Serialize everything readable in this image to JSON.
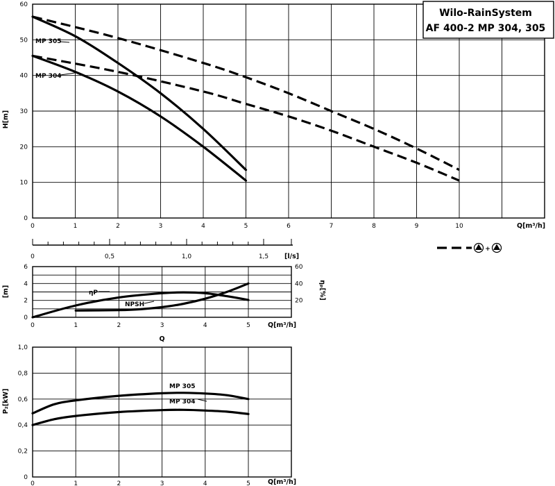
{
  "title": {
    "line1": "Wilo-RainSystem",
    "line2": "AF 400-2   MP 304, 305"
  },
  "legend": {
    "pump_symbol": "▲",
    "plus": "+"
  },
  "chart_data": [
    {
      "type": "line",
      "id": "head",
      "xlabel": "Q[m³/h]",
      "ylabel": "H[m]",
      "xlim": [
        0,
        12
      ],
      "ylim": [
        0,
        60
      ],
      "x_ticks": [
        0,
        1,
        2,
        3,
        4,
        5,
        6,
        7,
        8,
        9,
        10
      ],
      "y_ticks": [
        0,
        10,
        20,
        30,
        40,
        50,
        60
      ],
      "grid": true,
      "series": [
        {
          "name": "MP 305",
          "style": "solid",
          "x": [
            0,
            1,
            2,
            3,
            4,
            5
          ],
          "y": [
            56.5,
            51,
            43.5,
            35,
            25,
            13.5
          ]
        },
        {
          "name": "MP 304",
          "style": "solid",
          "x": [
            0,
            1,
            2,
            3,
            4,
            5
          ],
          "y": [
            45.5,
            41,
            35.5,
            28.5,
            20,
            10.5
          ]
        },
        {
          "style": "dashed",
          "x": [
            0,
            2,
            4,
            5,
            6,
            7,
            8,
            9,
            10
          ],
          "y": [
            56.5,
            50.5,
            43.5,
            39.5,
            35,
            30,
            25,
            19.5,
            13.5
          ]
        },
        {
          "style": "dashed",
          "x": [
            0,
            2,
            4,
            5,
            6,
            7,
            8,
            9,
            10
          ],
          "y": [
            45.5,
            41,
            35.5,
            32,
            28.5,
            24.5,
            20,
            15.5,
            10.5
          ]
        }
      ]
    },
    {
      "type": "line",
      "id": "secondary_axis",
      "xlabel": "[l/s]",
      "xlim": [
        0,
        1.5
      ],
      "x_ticks": [
        "0",
        "0,5",
        "1,0",
        "1,5"
      ]
    },
    {
      "type": "line",
      "id": "npsh_efficiency",
      "xlabel": "Q[m³/h]",
      "bottom_label": "Q",
      "ylabel": "[m]",
      "ylabel_right": "ηₚ[%]",
      "xlim": [
        0,
        5
      ],
      "ylim": [
        0,
        6
      ],
      "ylim_right": [
        0,
        60
      ],
      "x_ticks": [
        0,
        1,
        2,
        3,
        4,
        5
      ],
      "y_ticks": [
        0,
        2,
        4,
        6
      ],
      "y_ticks_right": [
        20,
        40,
        60
      ],
      "grid": true,
      "series": [
        {
          "name": "ηP",
          "axis": "right",
          "x": [
            0,
            1,
            2,
            3,
            3.5,
            4,
            4.5,
            5
          ],
          "y": [
            0,
            14,
            23.5,
            28.5,
            29.5,
            28.5,
            25,
            20.5
          ]
        },
        {
          "name": "NPSH",
          "axis": "left",
          "x": [
            1,
            2,
            2.5,
            3,
            3.5,
            4,
            4.5,
            5
          ],
          "y": [
            0.8,
            0.85,
            0.95,
            1.2,
            1.6,
            2.2,
            3,
            4
          ]
        }
      ]
    },
    {
      "type": "line",
      "id": "power",
      "xlabel": "Q[m³/h]",
      "ylabel": "P₂[kW]",
      "xlim": [
        0,
        5
      ],
      "ylim": [
        0.0,
        1.0
      ],
      "x_ticks": [
        0,
        1,
        2,
        3,
        4,
        5
      ],
      "y_ticks": [
        "0",
        "0,2",
        "0,4",
        "0,6",
        "0,8",
        "1,0"
      ],
      "grid": true,
      "series": [
        {
          "name": "MP 305",
          "x": [
            0,
            0.5,
            1,
            2,
            3,
            3.5,
            4,
            4.5,
            5
          ],
          "y": [
            0.49,
            0.56,
            0.59,
            0.625,
            0.645,
            0.648,
            0.643,
            0.63,
            0.6
          ]
        },
        {
          "name": "MP 304",
          "x": [
            0,
            0.5,
            1,
            2,
            3,
            3.5,
            4,
            4.5,
            5
          ],
          "y": [
            0.4,
            0.445,
            0.47,
            0.5,
            0.515,
            0.517,
            0.512,
            0.503,
            0.485
          ]
        }
      ]
    }
  ]
}
